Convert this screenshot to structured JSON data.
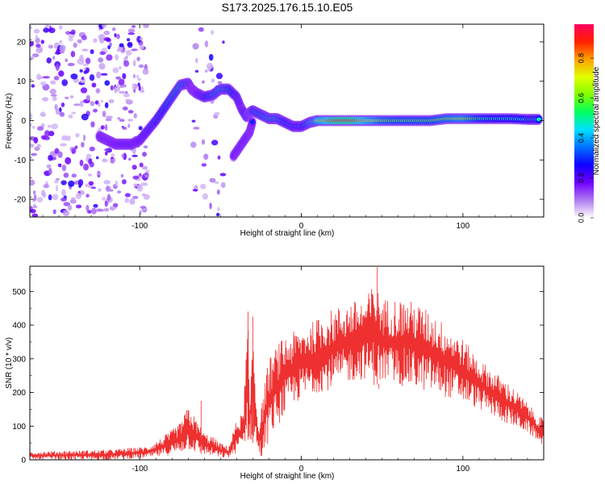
{
  "title": "S173.2025.176.15.10.E05",
  "chart_data": [
    {
      "type": "heatmap",
      "xlabel": "Height of straight line (km)",
      "ylabel": "Frequency (Hz)",
      "xlim": [
        -168,
        150
      ],
      "ylim": [
        -24.5,
        24.5
      ],
      "xticks": [
        -100,
        0,
        100
      ],
      "yticks": [
        -20,
        -10,
        0,
        10,
        20
      ],
      "colorbar": {
        "label": "Normalized spectral amplitude",
        "range": [
          0,
          0.97
        ],
        "ticks": [
          0.0,
          0.2,
          0.4,
          0.6,
          0.8
        ],
        "colors": [
          "#ffffff",
          "#b07cf0",
          "#7000ff",
          "#1000ff",
          "#0070ff",
          "#00e0ff",
          "#00ff60",
          "#80ff00",
          "#e0ff00",
          "#ffa000",
          "#ff2000",
          "#ff0060"
        ]
      },
      "ridge": {
        "x": [
          -125,
          -120,
          -115,
          -110,
          -105,
          -100,
          -95,
          -90,
          -85,
          -80,
          -75,
          -70,
          -68,
          -65,
          -60,
          -55,
          -50,
          -45,
          -40,
          -37,
          -34,
          -32,
          -30,
          -25,
          -20,
          -15,
          -10,
          -5,
          0,
          5,
          10,
          20,
          30,
          40,
          50,
          60,
          70,
          80,
          90,
          100,
          110,
          120,
          130,
          140,
          148
        ],
        "y": [
          -4,
          -5,
          -6,
          -6,
          -6,
          -5,
          -2.5,
          0,
          3,
          6,
          9,
          9.5,
          8,
          7,
          6,
          6.5,
          8,
          8,
          6,
          3,
          1,
          2,
          2.5,
          1.5,
          0.5,
          0.5,
          -0.5,
          -1.5,
          -1.5,
          -0.5,
          0,
          0,
          0,
          0,
          0,
          0,
          0,
          0,
          0.5,
          0.5,
          0.5,
          0.5,
          0.5,
          0.3,
          0.3
        ],
        "intensity": [
          0.3,
          0.3,
          0.32,
          0.35,
          0.35,
          0.35,
          0.4,
          0.45,
          0.5,
          0.55,
          0.6,
          0.55,
          0.3,
          0.3,
          0.45,
          0.55,
          0.6,
          0.55,
          0.45,
          0.35,
          0.5,
          0.55,
          0.55,
          0.55,
          0.6,
          0.6,
          0.5,
          0.45,
          0.45,
          0.6,
          0.75,
          0.9,
          0.95,
          0.8,
          0.65,
          0.6,
          0.6,
          0.6,
          0.65,
          0.7,
          0.55,
          0.5,
          0.5,
          0.5,
          0.5
        ]
      },
      "branch": {
        "x": [
          -42,
          -37,
          -32,
          -30
        ],
        "y": [
          -9,
          -6,
          -3,
          0
        ]
      },
      "noise_regions": [
        {
          "x": [
            -168,
            -95
          ],
          "y": [
            -24.5,
            24.5
          ],
          "density": 1.0
        },
        {
          "x": [
            -67,
            -48
          ],
          "y": [
            -24.5,
            24.5
          ],
          "density": 0.45
        }
      ]
    },
    {
      "type": "line",
      "xlabel": "Height of straight line (km)",
      "ylabel": "SNR (10 * v/v)",
      "xlim": [
        -168,
        150
      ],
      "ylim": [
        0,
        575
      ],
      "xticks": [
        -100,
        0,
        100
      ],
      "yticks": [
        0,
        100,
        200,
        300,
        400,
        500
      ],
      "series": [
        {
          "color": "#ee3030",
          "envelope_x": [
            -168,
            -120,
            -95,
            -85,
            -75,
            -70,
            -65,
            -60,
            -55,
            -50,
            -45,
            -40,
            -36,
            -33,
            -32,
            -30,
            -27,
            -25,
            -23,
            -20,
            -15,
            -10,
            -5,
            0,
            10,
            20,
            30,
            40,
            45,
            50,
            60,
            70,
            80,
            90,
            100,
            110,
            120,
            130,
            140,
            145,
            150
          ],
          "envelope_low": [
            0,
            0,
            5,
            10,
            20,
            30,
            20,
            15,
            10,
            5,
            5,
            20,
            40,
            60,
            60,
            50,
            20,
            0,
            10,
            60,
            100,
            130,
            160,
            180,
            200,
            210,
            230,
            240,
            220,
            230,
            220,
            210,
            200,
            185,
            170,
            150,
            125,
            100,
            80,
            60,
            40
          ],
          "envelope_high": [
            25,
            30,
            40,
            70,
            110,
            160,
            120,
            80,
            70,
            50,
            40,
            120,
            140,
            440,
            140,
            420,
            120,
            140,
            230,
            300,
            340,
            370,
            380,
            390,
            420,
            450,
            470,
            480,
            530,
            480,
            480,
            470,
            440,
            400,
            360,
            300,
            260,
            220,
            170,
            140,
            120
          ],
          "spikes": [
            {
              "x": -62,
              "y": 175
            },
            {
              "x": -33,
              "y": 440
            },
            {
              "x": -30,
              "y": 425
            },
            {
              "x": 47,
              "y": 572
            },
            {
              "x": 48,
              "y": 210
            }
          ]
        }
      ]
    }
  ]
}
